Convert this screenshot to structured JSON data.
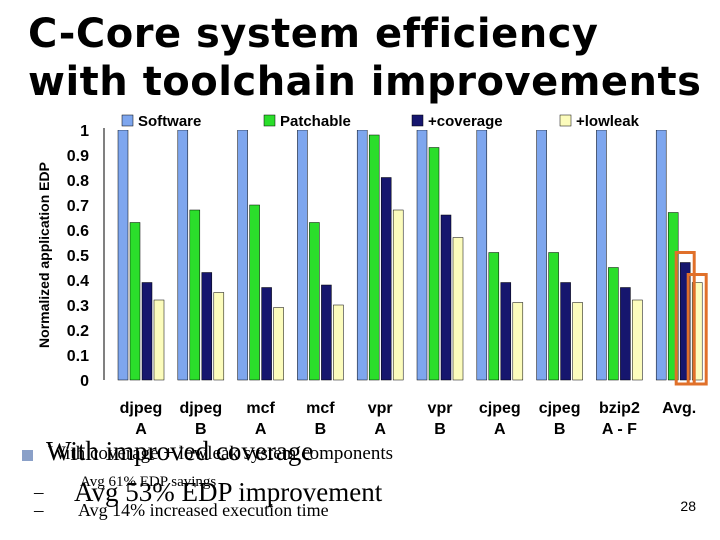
{
  "slide": {
    "title": "C-Core system efficiency with toolchain improvements",
    "page_number": "28"
  },
  "bullets": {
    "main_over": "With improved coverage",
    "main_under": "With coverage + lowleak system components",
    "sub1_over": "Avg 53% EDP improvement",
    "sub1_under": "Avg 61% EDP savings",
    "sub2": "Avg 14% increased execution time",
    "dash": "–"
  },
  "chart_data": {
    "type": "bar",
    "ylabel": "Normalized application EDP",
    "ylim": [
      0,
      1
    ],
    "yticks": [
      "0",
      "0.1",
      "0.2",
      "0.3",
      "0.4",
      "0.5",
      "0.6",
      "0.7",
      "0.8",
      "0.9",
      "1"
    ],
    "categories": [
      [
        "djpeg",
        "A"
      ],
      [
        "djpeg",
        "B"
      ],
      [
        "mcf",
        "A"
      ],
      [
        "mcf",
        "B"
      ],
      [
        "vpr",
        "A"
      ],
      [
        "vpr",
        "B"
      ],
      [
        "cjpeg",
        "A"
      ],
      [
        "cjpeg",
        "B"
      ],
      [
        "bzip2",
        "A - F"
      ],
      [
        "Avg.",
        ""
      ]
    ],
    "series": [
      {
        "name": "Software",
        "color": "#7ea6ee",
        "values": [
          1,
          1,
          1,
          1,
          1,
          1,
          1,
          1,
          1,
          1
        ]
      },
      {
        "name": "Patchable",
        "color": "#2bde2b",
        "values": [
          0.63,
          0.68,
          0.7,
          0.63,
          0.98,
          0.93,
          0.51,
          0.51,
          0.45,
          0.67
        ]
      },
      {
        "name": "+coverage",
        "color": "#16166e",
        "values": [
          0.39,
          0.43,
          0.37,
          0.38,
          0.81,
          0.66,
          0.39,
          0.39,
          0.37,
          0.47
        ]
      },
      {
        "name": "+lowleak",
        "color": "#fcfcbc",
        "values": [
          0.32,
          0.35,
          0.29,
          0.3,
          0.68,
          0.57,
          0.31,
          0.31,
          0.32,
          0.39
        ]
      }
    ],
    "grid": false,
    "legend": "top",
    "highlight_color": "#e0702a"
  }
}
